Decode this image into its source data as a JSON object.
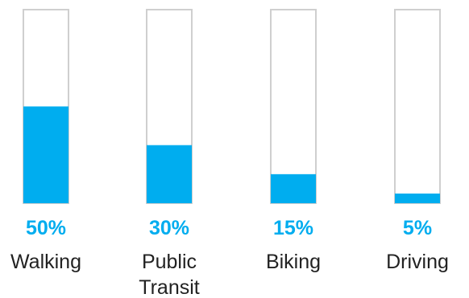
{
  "chart_data": {
    "type": "bar",
    "categories": [
      "Walking",
      "Public Transit",
      "Biking",
      "Driving"
    ],
    "category_lines": [
      [
        "Walking"
      ],
      [
        "Public",
        "Transit"
      ],
      [
        "Biking"
      ],
      [
        "Driving"
      ]
    ],
    "values": [
      50,
      30,
      15,
      5
    ],
    "value_labels": [
      "50%",
      "30%",
      "15%",
      "5%"
    ],
    "ylim": [
      0,
      100
    ],
    "grid": false,
    "legend": "none",
    "colors": {
      "fill": "#00adef",
      "outline": "#cfcfcf",
      "value_label": "#00adef",
      "category_label": "#222222"
    }
  }
}
